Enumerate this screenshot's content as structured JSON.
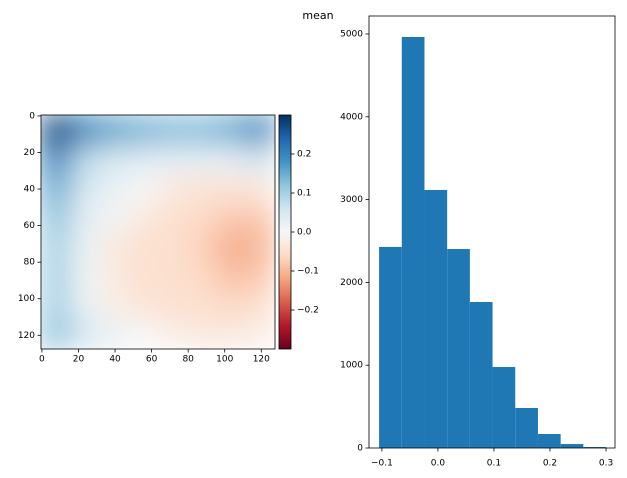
{
  "title": "mean",
  "chart_data": [
    {
      "type": "heatmap",
      "z": [
        [
          0.28,
          0.2,
          0.16,
          0.14,
          0.13,
          0.13,
          0.15,
          0.2
        ],
        [
          0.2,
          0.08,
          0.05,
          0.04,
          0.03,
          0.03,
          0.03,
          0.06
        ],
        [
          0.15,
          0.05,
          0.02,
          0.0,
          -0.03,
          -0.04,
          -0.04,
          -0.03
        ],
        [
          0.12,
          0.03,
          0.01,
          -0.03,
          -0.05,
          -0.06,
          -0.08,
          -0.08
        ],
        [
          0.1,
          0.02,
          -0.03,
          -0.05,
          -0.05,
          -0.07,
          -0.11,
          -0.1
        ],
        [
          0.1,
          0.01,
          -0.03,
          -0.05,
          -0.05,
          -0.06,
          -0.09,
          -0.08
        ],
        [
          0.1,
          0.02,
          -0.02,
          -0.04,
          -0.05,
          -0.05,
          -0.06,
          -0.05
        ],
        [
          0.12,
          0.05,
          0.02,
          0.0,
          -0.02,
          -0.03,
          -0.03,
          -0.02
        ]
      ],
      "xlim": [
        -0.5,
        127.5
      ],
      "ylim": [
        127.5,
        -0.5
      ],
      "xticks": [
        0,
        20,
        40,
        60,
        80,
        100,
        120
      ],
      "yticks": [
        0,
        20,
        40,
        60,
        80,
        100,
        120
      ],
      "clim": [
        -0.3,
        0.3
      ],
      "cticks": [
        {
          "value": -0.2,
          "label": "−0.2"
        },
        {
          "value": -0.1,
          "label": "−0.1"
        },
        {
          "value": 0,
          "label": "0.0"
        },
        0.1,
        0.2
      ],
      "colormap": [
        "#67001f",
        "#b2182b",
        "#d6604d",
        "#f4a582",
        "#fddbc7",
        "#f7f7f7",
        "#d1e5f0",
        "#92c5de",
        "#4393c3",
        "#2166ac",
        "#053061"
      ]
    },
    {
      "type": "histogram",
      "bins": [
        -0.105,
        -0.0645,
        -0.024,
        0.0165,
        0.057,
        0.0975,
        0.138,
        0.1785,
        0.219,
        0.2595,
        0.3
      ],
      "counts": [
        2428,
        4964,
        3116,
        2403,
        1763,
        978,
        483,
        169,
        48,
        12
      ],
      "color": "#1f77b4",
      "xlim": [
        -0.123,
        0.316
      ],
      "ylim": [
        0,
        5217
      ],
      "xticks": [
        {
          "value": -0.1,
          "label": "−0.1"
        },
        {
          "value": 0,
          "label": "0.0"
        },
        0.1,
        0.2,
        0.3
      ],
      "yticks": [
        0,
        1000,
        2000,
        3000,
        4000,
        5000
      ]
    }
  ]
}
